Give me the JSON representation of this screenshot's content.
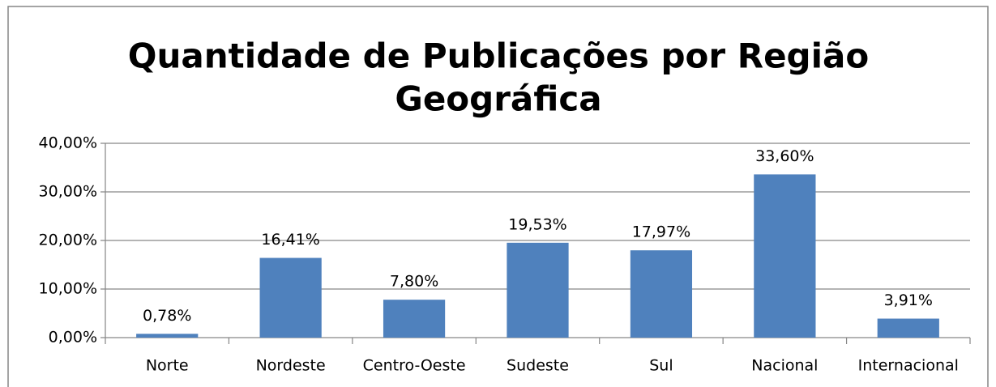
{
  "chart_data": {
    "type": "bar",
    "title": [
      "Quantidade de Publicações por Região",
      "Geográfica"
    ],
    "categories": [
      "Norte",
      "Nordeste",
      "Centro-Oeste",
      "Sudeste",
      "Sul",
      "Nacional",
      "Internacional"
    ],
    "values": [
      0.78,
      16.41,
      7.8,
      19.53,
      17.97,
      33.6,
      3.91
    ],
    "value_labels": [
      "0,78%",
      "16,41%",
      "7,80%",
      "19,53%",
      "17,97%",
      "33,60%",
      "3,91%"
    ],
    "color": "#4f81bd",
    "ylim": [
      0,
      40
    ],
    "yticks": [
      {
        "value": 0,
        "label": "0,00%"
      },
      {
        "value": 10,
        "label": "10,00%"
      },
      {
        "value": 20,
        "label": "20,00%"
      },
      {
        "value": 30,
        "label": "30,00%"
      },
      {
        "value": 40,
        "label": "40,00%"
      }
    ],
    "grid": true
  }
}
